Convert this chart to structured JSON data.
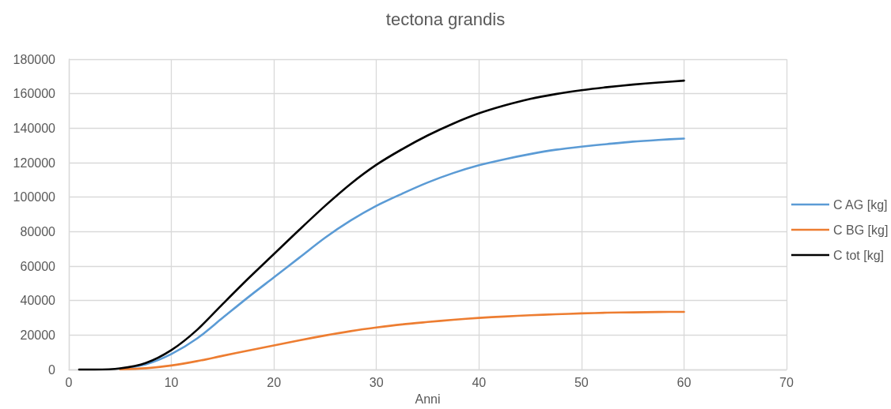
{
  "chart_data": {
    "type": "line",
    "title": "tectona grandis",
    "xlabel": "Anni",
    "x": [
      1,
      2.5,
      5,
      7.5,
      10,
      12.5,
      15,
      17.5,
      20,
      22.5,
      25,
      27.5,
      30,
      32.5,
      35,
      37.5,
      40,
      42.5,
      45,
      47.5,
      50,
      52.5,
      55,
      57.5,
      60
    ],
    "series": [
      {
        "name": "C AG [kg]",
        "color": "#5b9bd5",
        "values": [
          null,
          null,
          500,
          3000,
          9000,
          18000,
          30000,
          42000,
          53500,
          65000,
          76500,
          86500,
          95000,
          102000,
          108500,
          114000,
          118500,
          122000,
          125000,
          127500,
          129300,
          130800,
          132200,
          133200,
          134000
        ]
      },
      {
        "name": "C BG [kg]",
        "color": "#ed7d31",
        "values": [
          null,
          null,
          200,
          800,
          2400,
          4900,
          8000,
          11000,
          14000,
          17000,
          19800,
          22300,
          24400,
          26200,
          27600,
          28900,
          30000,
          30800,
          31500,
          32100,
          32600,
          33000,
          33200,
          33400,
          33500
        ]
      },
      {
        "name": "C tot [kg]",
        "color": "#000000",
        "values": [
          0,
          0,
          700,
          3800,
          11300,
          23000,
          38000,
          52800,
          67000,
          81200,
          95000,
          107800,
          118800,
          127800,
          135800,
          142700,
          148600,
          153200,
          157000,
          159800,
          162000,
          163800,
          165300,
          166500,
          167600
        ]
      }
    ],
    "xlim": [
      0,
      70
    ],
    "xticks": [
      0,
      10,
      20,
      30,
      40,
      50,
      60,
      70
    ],
    "ylim": [
      0,
      180000
    ],
    "yticks": [
      0,
      20000,
      40000,
      60000,
      80000,
      100000,
      120000,
      140000,
      160000,
      180000
    ],
    "grid": true,
    "legend": "right",
    "marker": "none",
    "line_style": "solid"
  }
}
